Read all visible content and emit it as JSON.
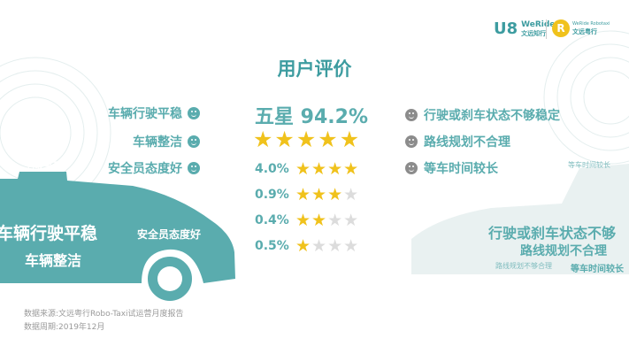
{
  "logos": {
    "weride_en": "WeRide",
    "weride_cn": "文远知行",
    "robotaxi_en": "WeRide Robotaxi",
    "robotaxi_cn": "文远粤行"
  },
  "title": "用户评价",
  "positives": [
    {
      "label": "车辆行驶平稳",
      "icon": "smile-face-icon"
    },
    {
      "label": "车辆整洁",
      "icon": "smile-face-icon"
    },
    {
      "label": "安全员态度好",
      "icon": "smile-face-icon"
    }
  ],
  "negatives": [
    {
      "label": "行驶或刹车状态不够稳定",
      "icon": "neutral-face-icon"
    },
    {
      "label": "路线规划不合理",
      "icon": "neutral-face-icon"
    },
    {
      "label": "等车时间较长",
      "icon": "neutral-face-icon"
    }
  ],
  "five_star": {
    "label": "五星 94.2%",
    "stars": 5
  },
  "ratings": [
    {
      "pct": "4.0%",
      "stars": 4
    },
    {
      "pct": "0.9%",
      "stars": 3
    },
    {
      "pct": "0.4%",
      "stars": 2
    },
    {
      "pct": "0.5%",
      "stars": 1
    }
  ],
  "car_left": {
    "tag": "行驶平稳",
    "w1": "车辆行驶平稳",
    "w2": "安全员态度好",
    "w3": "车辆整洁"
  },
  "car_right": {
    "w1": "行驶或刹车状态不够",
    "w2": "路线规划不合理",
    "w3": "等车时间较长",
    "w4": "路线规划不够合理",
    "w5": "等车时间较长"
  },
  "footer": {
    "source": "数据来源:文远粤行Robo-Taxi试运营月度报告",
    "period": "数据周期:2019年12月"
  },
  "colors": {
    "teal": "#5aacae",
    "star": "#f0c21c",
    "star_empty": "#dcdcdc",
    "neutral": "#8c8c8c"
  }
}
